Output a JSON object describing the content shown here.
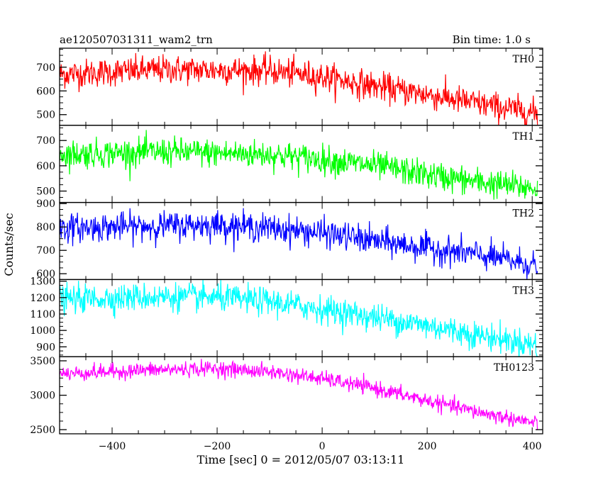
{
  "chart_data": {
    "type": "line",
    "title": "ae120507031311_wam2_trn",
    "subtitle": "Bin time: 1.0 s",
    "xlabel": "Time [sec] 0 = 2012/05/07 03:13:11",
    "ylabel": "Counts/sec",
    "xlim": [
      -500,
      420
    ],
    "x_range": [
      -500,
      410
    ],
    "x_ticks": [
      -400,
      -200,
      0,
      200,
      400
    ],
    "x_tick_labels": [
      "−400",
      "−200",
      "0",
      "200",
      "400"
    ],
    "grid": false,
    "panels": [
      {
        "name": "TH0",
        "color": "#ff0000",
        "ylim": [
          455,
          780
        ],
        "y_ticks": [
          500,
          600,
          700
        ],
        "y_tick_labels": [
          "500",
          "600",
          "700"
        ],
        "trend": {
          "x": [
            -500,
            -300,
            -100,
            0,
            100,
            200,
            300,
            410
          ],
          "y": [
            670,
            690,
            685,
            660,
            620,
            585,
            545,
            505
          ]
        },
        "noise": 30
      },
      {
        "name": "TH1",
        "color": "#00ff00",
        "ylim": [
          455,
          760
        ],
        "y_ticks": [
          500,
          600,
          700
        ],
        "y_tick_labels": [
          "500",
          "600",
          "700"
        ],
        "trend": {
          "x": [
            -500,
            -300,
            -100,
            0,
            100,
            200,
            300,
            410
          ],
          "y": [
            645,
            655,
            645,
            625,
            600,
            565,
            535,
            510
          ]
        },
        "noise": 28
      },
      {
        "name": "TH2",
        "color": "#0000ff",
        "ylim": [
          575,
          905
        ],
        "y_ticks": [
          600,
          700,
          800,
          900
        ],
        "y_tick_labels": [
          "600",
          "700",
          "800",
          "900"
        ],
        "trend": {
          "x": [
            -500,
            -300,
            -200,
            -100,
            0,
            100,
            200,
            300,
            410
          ],
          "y": [
            795,
            805,
            810,
            795,
            775,
            740,
            710,
            680,
            635
          ]
        },
        "noise": 30
      },
      {
        "name": "TH3",
        "color": "#00ffff",
        "ylim": [
          840,
          1310
        ],
        "y_ticks": [
          900,
          1000,
          1100,
          1200,
          1300
        ],
        "y_tick_labels": [
          "900",
          "1000",
          "1100",
          "1200",
          "1300"
        ],
        "trend": {
          "x": [
            -500,
            -300,
            -200,
            -100,
            0,
            100,
            200,
            300,
            410
          ],
          "y": [
            1190,
            1205,
            1200,
            1175,
            1130,
            1080,
            1030,
            970,
            910
          ]
        },
        "noise": 42
      },
      {
        "name": "TH0123",
        "color": "#ff00ff",
        "ylim": [
          2440,
          3560
        ],
        "y_ticks": [
          2500,
          3000,
          3500
        ],
        "y_tick_labels": [
          "2500",
          "3000",
          "3500"
        ],
        "trend": {
          "x": [
            -500,
            -350,
            -200,
            -100,
            0,
            100,
            200,
            300,
            410
          ],
          "y": [
            3310,
            3360,
            3390,
            3340,
            3240,
            3100,
            2920,
            2750,
            2590
          ]
        },
        "noise": 55
      }
    ]
  }
}
